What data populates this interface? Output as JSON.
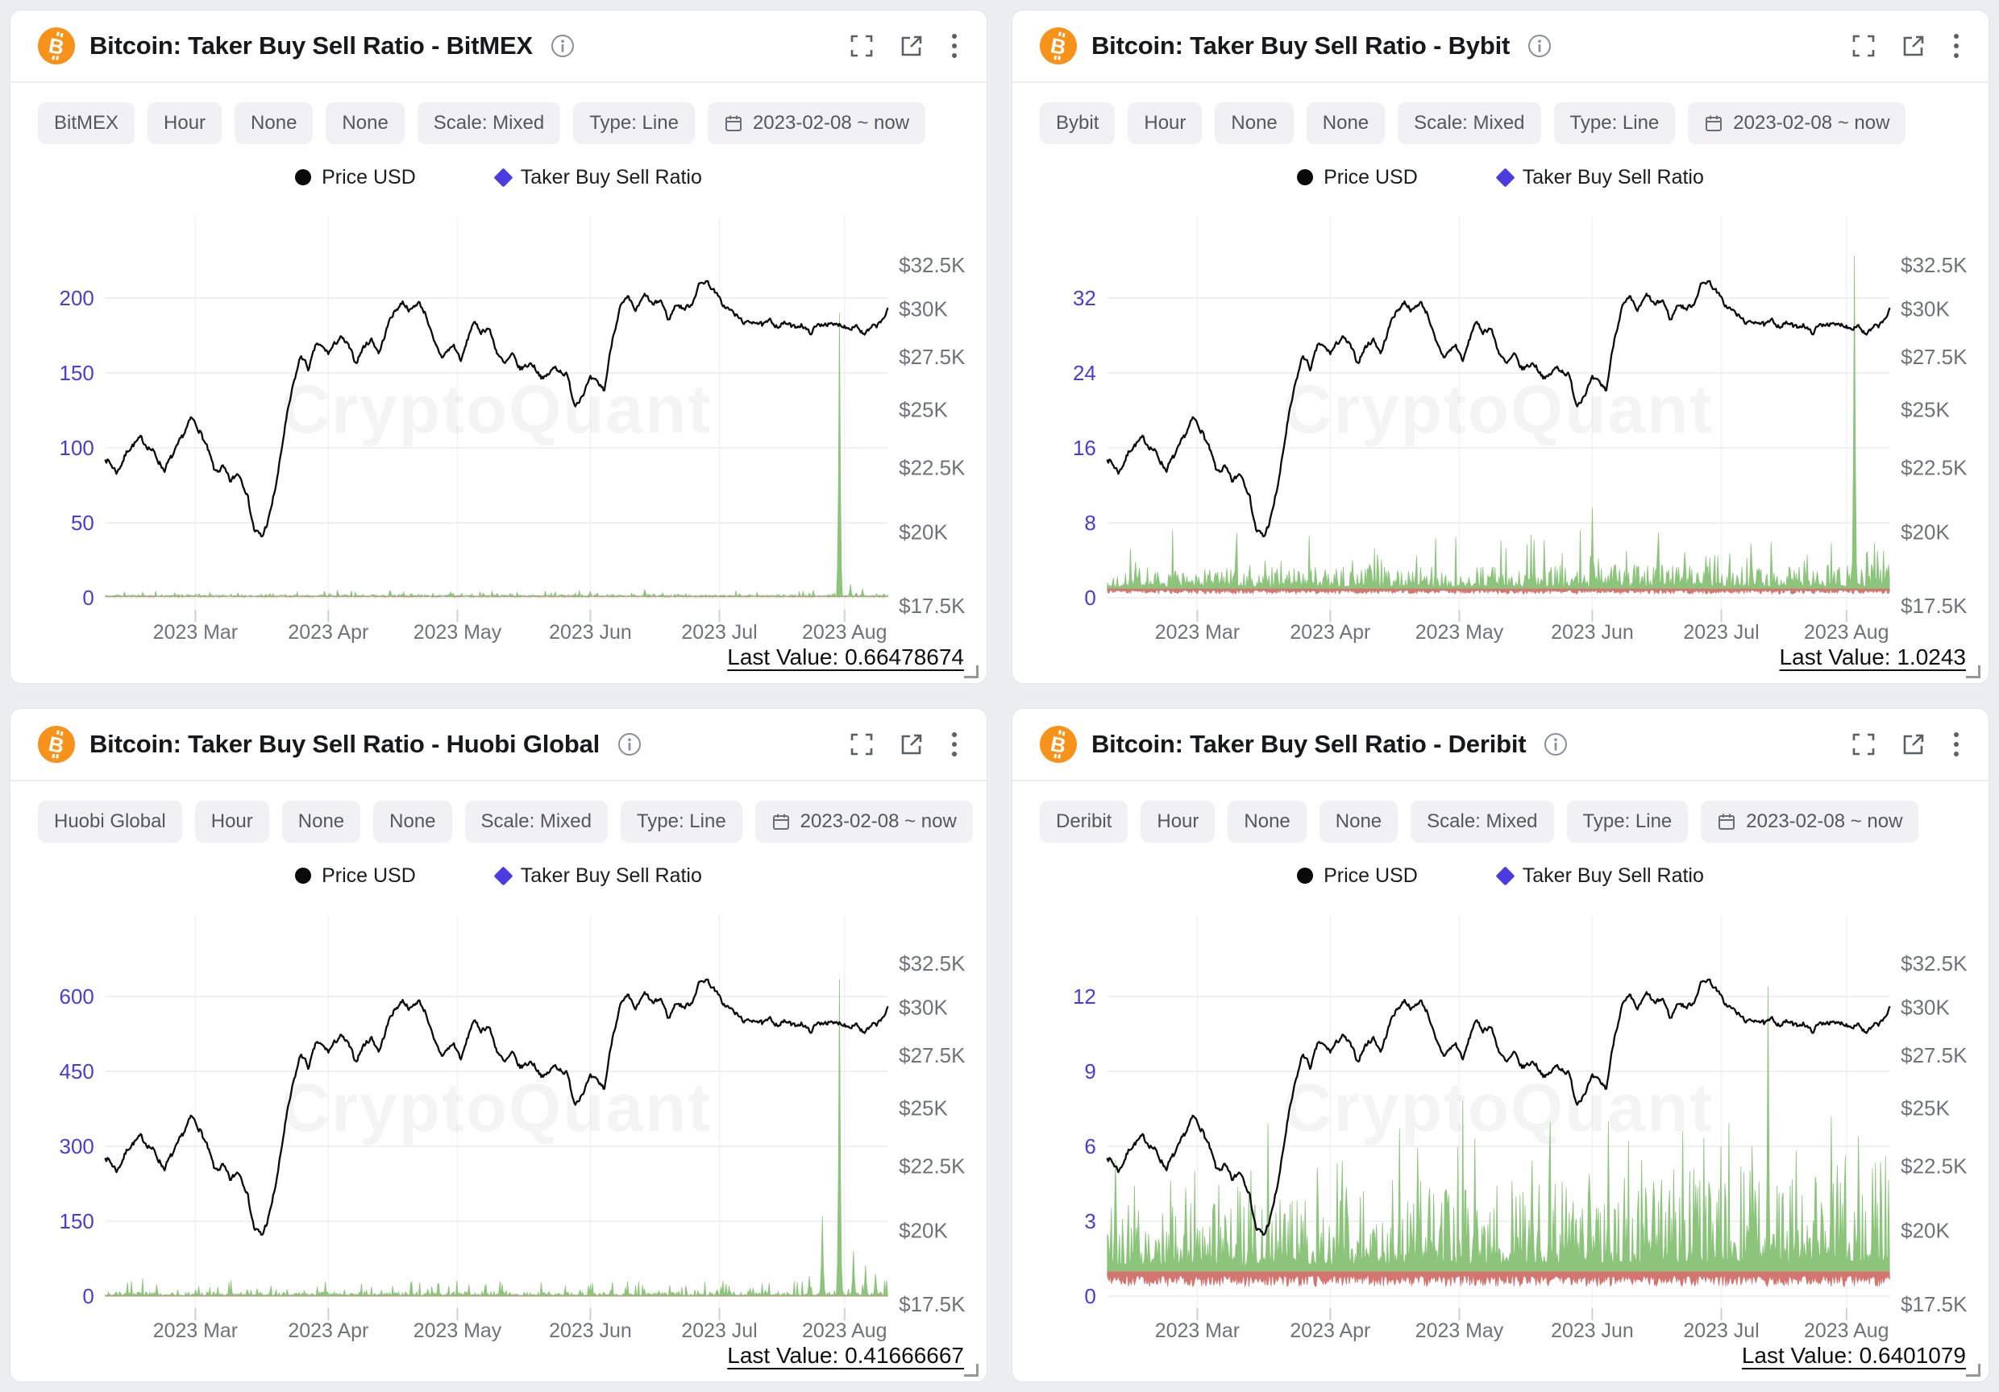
{
  "page": {
    "background": "#ecedef",
    "watermark": "CryptoQuant",
    "last_value_label": "Last Value:"
  },
  "chips_common": [
    "Hour",
    "None",
    "None",
    "Scale: Mixed",
    "Type: Line"
  ],
  "date_range": "2023-02-08 ~ now",
  "legend": {
    "price": "Price USD",
    "ratio": "Taker Buy Sell Ratio"
  },
  "icons": [
    "bitcoin-icon",
    "info-icon",
    "fullscreen-icon",
    "open-in-new-icon",
    "more-menu-icon",
    "calendar-icon",
    "resize-handle"
  ],
  "chart_data": {
    "shared": {
      "type": "line",
      "colors": {
        "price": "#0a0a0a",
        "ratio_legend": "#4b3ce0",
        "ratio_green": "#8cc47c",
        "ratio_red": "#d57570",
        "grid": "#eaebed",
        "axis_text": "#6f7377",
        "left_axis_text": "#4a3dd4",
        "watermark": "rgba(0,0,0,0.045)"
      },
      "price_axis": {
        "scale": "log",
        "labels": [
          "$32.5K",
          "$30K",
          "$27.5K",
          "$25K",
          "$22.5K",
          "$20K",
          "$17.5K"
        ],
        "values": [
          32.5,
          30,
          27.5,
          25,
          22.5,
          20,
          17.5
        ],
        "position": "right"
      },
      "x_months": [
        {
          "label": "2023 Mar",
          "f": 0.115
        },
        {
          "label": "2023 Apr",
          "f": 0.285
        },
        {
          "label": "2023 May",
          "f": 0.45
        },
        {
          "label": "2023 Jun",
          "f": 0.62
        },
        {
          "label": "2023 Jul",
          "f": 0.785
        },
        {
          "label": "2023 Aug",
          "f": 0.945
        }
      ],
      "price_series_keypoints": [
        [
          0.0,
          22.9
        ],
        [
          0.015,
          22.3
        ],
        [
          0.03,
          23.3
        ],
        [
          0.045,
          23.7
        ],
        [
          0.06,
          23.2
        ],
        [
          0.075,
          22.4
        ],
        [
          0.09,
          23.2
        ],
        [
          0.1,
          23.9
        ],
        [
          0.11,
          24.6
        ],
        [
          0.12,
          24.1
        ],
        [
          0.13,
          23.3
        ],
        [
          0.14,
          22.3
        ],
        [
          0.15,
          22.5
        ],
        [
          0.16,
          21.9
        ],
        [
          0.17,
          22.3
        ],
        [
          0.18,
          21.6
        ],
        [
          0.19,
          20.1
        ],
        [
          0.2,
          19.8
        ],
        [
          0.21,
          20.6
        ],
        [
          0.22,
          22.1
        ],
        [
          0.23,
          24.3
        ],
        [
          0.24,
          26.1
        ],
        [
          0.25,
          27.6
        ],
        [
          0.26,
          26.9
        ],
        [
          0.27,
          28.2
        ],
        [
          0.285,
          27.7
        ],
        [
          0.3,
          28.5
        ],
        [
          0.31,
          28.1
        ],
        [
          0.32,
          27.2
        ],
        [
          0.33,
          28.0
        ],
        [
          0.34,
          28.4
        ],
        [
          0.35,
          27.7
        ],
        [
          0.365,
          29.6
        ],
        [
          0.38,
          30.4
        ],
        [
          0.39,
          29.9
        ],
        [
          0.4,
          30.4
        ],
        [
          0.41,
          29.7
        ],
        [
          0.42,
          28.2
        ],
        [
          0.43,
          27.5
        ],
        [
          0.445,
          28.1
        ],
        [
          0.455,
          27.3
        ],
        [
          0.47,
          29.3
        ],
        [
          0.48,
          28.8
        ],
        [
          0.49,
          29.0
        ],
        [
          0.5,
          27.8
        ],
        [
          0.51,
          27.1
        ],
        [
          0.52,
          27.6
        ],
        [
          0.53,
          26.9
        ],
        [
          0.545,
          27.2
        ],
        [
          0.56,
          26.4
        ],
        [
          0.575,
          27.0
        ],
        [
          0.59,
          26.6
        ],
        [
          0.6,
          25.2
        ],
        [
          0.61,
          25.7
        ],
        [
          0.62,
          26.4
        ],
        [
          0.63,
          26.2
        ],
        [
          0.638,
          25.9
        ],
        [
          0.648,
          28.4
        ],
        [
          0.658,
          30.1
        ],
        [
          0.668,
          30.6
        ],
        [
          0.678,
          29.9
        ],
        [
          0.69,
          30.8
        ],
        [
          0.7,
          30.2
        ],
        [
          0.71,
          30.5
        ],
        [
          0.72,
          29.4
        ],
        [
          0.73,
          30.3
        ],
        [
          0.74,
          30.0
        ],
        [
          0.75,
          30.3
        ],
        [
          0.758,
          31.3
        ],
        [
          0.768,
          31.6
        ],
        [
          0.78,
          30.9
        ],
        [
          0.79,
          30.2
        ],
        [
          0.8,
          29.9
        ],
        [
          0.81,
          29.5
        ],
        [
          0.82,
          29.2
        ],
        [
          0.83,
          29.4
        ],
        [
          0.84,
          29.1
        ],
        [
          0.85,
          29.35
        ],
        [
          0.86,
          29.1
        ],
        [
          0.87,
          29.25
        ],
        [
          0.88,
          29.0
        ],
        [
          0.89,
          29.2
        ],
        [
          0.9,
          28.7
        ],
        [
          0.91,
          29.1
        ],
        [
          0.92,
          29.25
        ],
        [
          0.93,
          29.1
        ],
        [
          0.94,
          29.2
        ],
        [
          0.95,
          29.0
        ],
        [
          0.96,
          29.15
        ],
        [
          0.97,
          28.6
        ],
        [
          0.98,
          29.0
        ],
        [
          0.99,
          29.2
        ],
        [
          1.0,
          29.9
        ]
      ]
    },
    "panels": [
      {
        "title": "Bitcoin: Taker Buy Sell Ratio - BitMEX",
        "exchange": "BitMEX",
        "last_value": "0.66478674",
        "left_ticks": [
          "200",
          "150",
          "100",
          "50",
          "0"
        ],
        "tick_step": 50,
        "ratio_baseline": 1,
        "spikes": [
          [
            0.938,
            190
          ],
          [
            0.952,
            9
          ],
          [
            0.968,
            6
          ],
          [
            0.905,
            5
          ]
        ],
        "noise": {
          "amp0": 0.8,
          "slope": 0,
          "big": 3.5,
          "red": 0.5,
          "seed": 11
        }
      },
      {
        "title": "Bitcoin: Taker Buy Sell Ratio - Bybit",
        "exchange": "Bybit",
        "last_value": "1.0243",
        "left_ticks": [
          "32",
          "24",
          "16",
          "8",
          "0"
        ],
        "tick_step": 8,
        "ratio_baseline": 1,
        "spikes": [
          [
            0.955,
            36.5
          ],
          [
            0.62,
            9.6
          ],
          [
            0.545,
            6.2
          ],
          [
            0.03,
            5.2
          ],
          [
            0.345,
            4.6
          ],
          [
            0.77,
            4.3
          ],
          [
            0.895,
            4.6
          ],
          [
            0.985,
            5.0
          ]
        ],
        "noise": {
          "amp0": 1.6,
          "slope": 0.3,
          "big": 5.5,
          "red": 0.6,
          "seed": 22
        }
      },
      {
        "title": "Bitcoin: Taker Buy Sell Ratio - Huobi Global",
        "exchange": "Huobi Global",
        "last_value": "0.41666667",
        "left_ticks": [
          "600",
          "450",
          "300",
          "150",
          "0"
        ],
        "tick_step": 150,
        "ratio_baseline": 1,
        "spikes": [
          [
            0.938,
            635
          ],
          [
            0.916,
            160
          ],
          [
            0.956,
            90
          ],
          [
            0.972,
            62
          ],
          [
            0.9,
            40
          ],
          [
            0.985,
            45
          ]
        ],
        "noise": {
          "amp0": 5.5,
          "slope": 0,
          "big": 28,
          "red": 3.2,
          "seed": 33
        }
      },
      {
        "title": "Bitcoin: Taker Buy Sell Ratio - Deribit",
        "exchange": "Deribit",
        "last_value": "0.6401079",
        "left_ticks": [
          "12",
          "9",
          "6",
          "3",
          "0"
        ],
        "tick_step": 3,
        "ratio_baseline": 1,
        "spikes": [
          [
            0.845,
            12.4
          ],
          [
            0.205,
            6.9
          ],
          [
            0.035,
            4.4
          ],
          [
            0.47,
            6.3
          ],
          [
            0.64,
            7.0
          ],
          [
            0.735,
            6.6
          ],
          [
            0.925,
            7.2
          ],
          [
            0.96,
            6.4
          ],
          [
            0.88,
            5.8
          ],
          [
            0.565,
            5.2
          ],
          [
            0.3,
            5.4
          ],
          [
            0.4,
            4.6
          ]
        ],
        "noise": {
          "amp0": 1.8,
          "slope": 1.7,
          "big": 4.2,
          "red": 0.62,
          "seed": 44
        }
      }
    ]
  }
}
